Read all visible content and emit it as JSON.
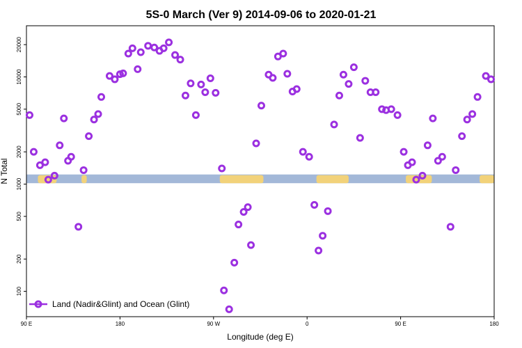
{
  "chart_data": {
    "type": "scatter",
    "title": "5S-0 March (Ver 9)   2014-09-06 to 2020-01-21",
    "xlabel": "Longitude (deg E)",
    "ylabel": "N Total",
    "xlim": [
      90,
      540
    ],
    "ylim": [
      58,
      30000
    ],
    "yscale": "log",
    "x_ticks": [
      {
        "value": 90,
        "label": "90 E"
      },
      {
        "value": 180,
        "label": "180"
      },
      {
        "value": 270,
        "label": "90 W"
      },
      {
        "value": 360,
        "label": "0"
      },
      {
        "value": 450,
        "label": "90 E"
      },
      {
        "value": 540,
        "label": "180"
      }
    ],
    "y_ticks": [
      100,
      200,
      500,
      1000,
      2000,
      5000,
      10000,
      20000
    ],
    "legend": {
      "position": "bottom-left",
      "label": "Land (Nadir&Glint) and Ocean (Glint)"
    },
    "series_color": "#9b30e0",
    "land_band": {
      "y_range": [
        1020,
        1230
      ],
      "ocean_color": "#a3b8d8",
      "land_color": "#f2d27a",
      "land_x_segments": [
        [
          101,
          119
        ],
        [
          143,
          148
        ],
        [
          276,
          318
        ],
        [
          369,
          400
        ],
        [
          455,
          480
        ],
        [
          526,
          548
        ]
      ]
    },
    "series": [
      {
        "name": "Land (Nadir&Glint) and Ocean (Glint)",
        "points": [
          [
            93,
            4400
          ],
          [
            97,
            2000
          ],
          [
            103,
            1500
          ],
          [
            108,
            1600
          ],
          [
            111,
            1100
          ],
          [
            117,
            1200
          ],
          [
            122,
            2300
          ],
          [
            126,
            4100
          ],
          [
            130,
            1650
          ],
          [
            133,
            1800
          ],
          [
            140,
            400
          ],
          [
            145,
            1350
          ],
          [
            150,
            2800
          ],
          [
            155,
            4000
          ],
          [
            159,
            4500
          ],
          [
            162,
            6500
          ],
          [
            170,
            10200
          ],
          [
            175,
            9500
          ],
          [
            180,
            10600
          ],
          [
            183,
            10800
          ],
          [
            188,
            16500
          ],
          [
            192,
            18500
          ],
          [
            197,
            11800
          ],
          [
            200,
            17000
          ],
          [
            207,
            19500
          ],
          [
            213,
            18800
          ],
          [
            218,
            17500
          ],
          [
            222,
            18500
          ],
          [
            227,
            21000
          ],
          [
            233,
            16000
          ],
          [
            238,
            14500
          ],
          [
            243,
            6700
          ],
          [
            248,
            8700
          ],
          [
            253,
            4400
          ],
          [
            258,
            8500
          ],
          [
            262,
            7200
          ],
          [
            267,
            9700
          ],
          [
            272,
            7100
          ],
          [
            278,
            1400
          ],
          [
            280,
            102
          ],
          [
            285,
            68
          ],
          [
            290,
            185
          ],
          [
            294,
            420
          ],
          [
            299,
            550
          ],
          [
            303,
            610
          ],
          [
            306,
            270
          ],
          [
            311,
            2400
          ],
          [
            316,
            5400
          ],
          [
            323,
            10500
          ],
          [
            327,
            9800
          ],
          [
            332,
            15500
          ],
          [
            337,
            16500
          ],
          [
            341,
            10700
          ],
          [
            346,
            7300
          ],
          [
            350,
            7700
          ],
          [
            356,
            2000
          ],
          [
            362,
            1800
          ],
          [
            367,
            640
          ],
          [
            371,
            240
          ],
          [
            375,
            330
          ],
          [
            380,
            560
          ],
          [
            386,
            3600
          ],
          [
            391,
            6700
          ],
          [
            395,
            10500
          ],
          [
            400,
            8600
          ],
          [
            405,
            12300
          ],
          [
            411,
            2700
          ],
          [
            416,
            9200
          ],
          [
            421,
            7200
          ],
          [
            426,
            7200
          ],
          [
            432,
            5000
          ],
          [
            436,
            4900
          ],
          [
            441,
            5000
          ],
          [
            447,
            4400
          ],
          [
            453,
            2000
          ],
          [
            457,
            1500
          ],
          [
            461,
            1600
          ],
          [
            465,
            1100
          ],
          [
            471,
            1200
          ],
          [
            476,
            2300
          ],
          [
            481,
            4100
          ],
          [
            486,
            1650
          ],
          [
            490,
            1800
          ],
          [
            498,
            400
          ],
          [
            503,
            1350
          ],
          [
            509,
            2800
          ],
          [
            514,
            4000
          ],
          [
            519,
            4500
          ],
          [
            524,
            6500
          ],
          [
            532,
            10200
          ],
          [
            537,
            9500
          ]
        ]
      }
    ]
  }
}
